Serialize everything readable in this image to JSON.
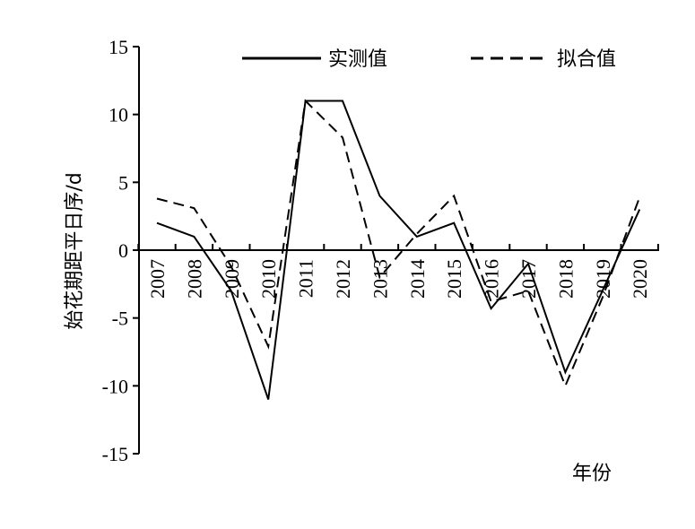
{
  "chart_data": {
    "type": "line",
    "title": "",
    "xlabel": "年份",
    "ylabel": "始花期距平日序/d",
    "ylim": [
      -15,
      15
    ],
    "yticks": [
      -15,
      -10,
      -5,
      0,
      5,
      10,
      15
    ],
    "categories": [
      "2007",
      "2008",
      "2009",
      "2010",
      "2011",
      "2012",
      "2013",
      "2014",
      "2015",
      "2016",
      "2017",
      "2018",
      "2019",
      "2020"
    ],
    "series": [
      {
        "name": "实测值",
        "style": "solid",
        "color": "#000000",
        "values": [
          2,
          1,
          -3,
          -11,
          11,
          11,
          4,
          1,
          2,
          -4.3,
          -1,
          -9,
          -3,
          3
        ]
      },
      {
        "name": "拟合值",
        "style": "dashed",
        "color": "#000000",
        "values": [
          3.8,
          3.1,
          -1.2,
          -7.1,
          11,
          8.3,
          -2,
          1.2,
          4,
          -3.8,
          -3,
          -10,
          -3.5,
          3.9
        ]
      }
    ],
    "legend_position": "top",
    "grid": false
  }
}
